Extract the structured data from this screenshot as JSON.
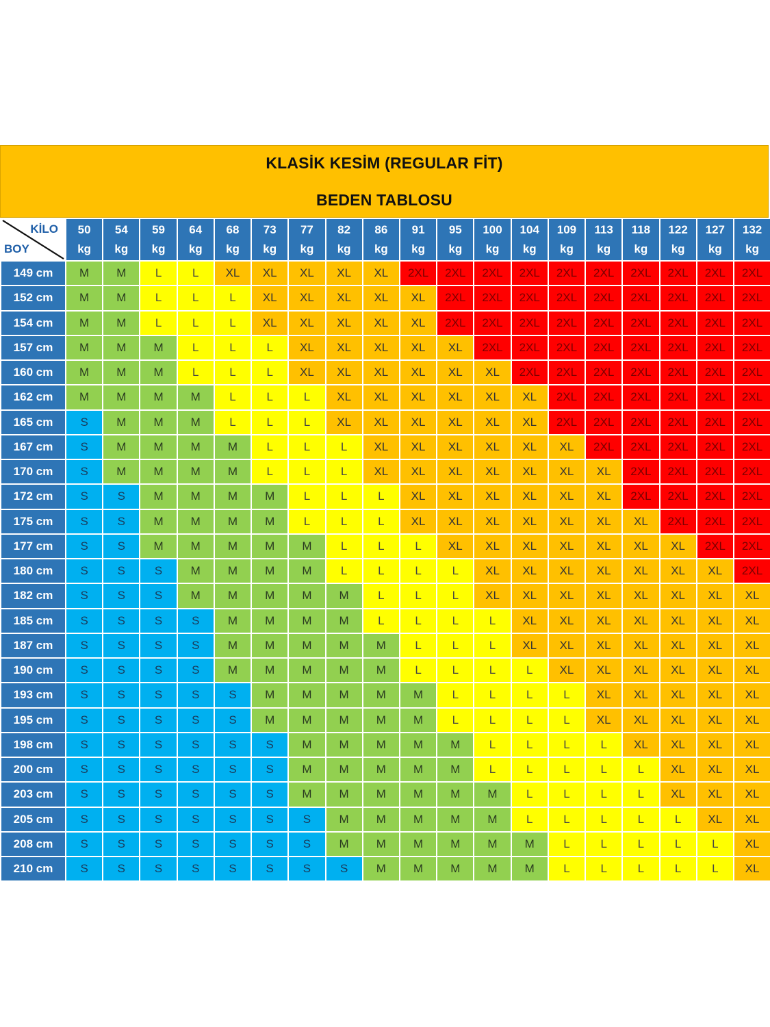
{
  "title": {
    "line1": "KLASİK KESİM (REGULAR FİT)",
    "line2": "BEDEN TABLOSU"
  },
  "corner": {
    "kilo_label": "KİLO",
    "boy_label": "BOY"
  },
  "kg_unit": "kg",
  "weights": [
    "50",
    "54",
    "59",
    "64",
    "68",
    "73",
    "77",
    "82",
    "86",
    "91",
    "95",
    "100",
    "104",
    "109",
    "113",
    "118",
    "122",
    "127",
    "132"
  ],
  "colors": {
    "S": "#00B0F0",
    "M": "#92D050",
    "L": "#FFFF00",
    "XL": "#FFC000",
    "2XL": "#FF0000",
    "header": "#2E75B6",
    "title_band": "#FFC000"
  },
  "rows": [
    {
      "height": "149 cm",
      "sizes": [
        "M",
        "M",
        "L",
        "L",
        "XL",
        "XL",
        "XL",
        "XL",
        "XL",
        "2XL",
        "2XL",
        "2XL",
        "2XL",
        "2XL",
        "2XL",
        "2XL",
        "2XL",
        "2XL",
        "2XL"
      ]
    },
    {
      "height": "152 cm",
      "sizes": [
        "M",
        "M",
        "L",
        "L",
        "L",
        "XL",
        "XL",
        "XL",
        "XL",
        "XL",
        "2XL",
        "2XL",
        "2XL",
        "2XL",
        "2XL",
        "2XL",
        "2XL",
        "2XL",
        "2XL"
      ]
    },
    {
      "height": "154 cm",
      "sizes": [
        "M",
        "M",
        "L",
        "L",
        "L",
        "XL",
        "XL",
        "XL",
        "XL",
        "XL",
        "2XL",
        "2XL",
        "2XL",
        "2XL",
        "2XL",
        "2XL",
        "2XL",
        "2XL",
        "2XL"
      ]
    },
    {
      "height": "157 cm",
      "sizes": [
        "M",
        "M",
        "M",
        "L",
        "L",
        "L",
        "XL",
        "XL",
        "XL",
        "XL",
        "XL",
        "2XL",
        "2XL",
        "2XL",
        "2XL",
        "2XL",
        "2XL",
        "2XL",
        "2XL"
      ]
    },
    {
      "height": "160 cm",
      "sizes": [
        "M",
        "M",
        "M",
        "L",
        "L",
        "L",
        "XL",
        "XL",
        "XL",
        "XL",
        "XL",
        "XL",
        "2XL",
        "2XL",
        "2XL",
        "2XL",
        "2XL",
        "2XL",
        "2XL"
      ]
    },
    {
      "height": "162 cm",
      "sizes": [
        "M",
        "M",
        "M",
        "M",
        "L",
        "L",
        "L",
        "XL",
        "XL",
        "XL",
        "XL",
        "XL",
        "XL",
        "2XL",
        "2XL",
        "2XL",
        "2XL",
        "2XL",
        "2XL"
      ]
    },
    {
      "height": "165 cm",
      "sizes": [
        "S",
        "M",
        "M",
        "M",
        "L",
        "L",
        "L",
        "XL",
        "XL",
        "XL",
        "XL",
        "XL",
        "XL",
        "2XL",
        "2XL",
        "2XL",
        "2XL",
        "2XL",
        "2XL"
      ]
    },
    {
      "height": "167 cm",
      "sizes": [
        "S",
        "M",
        "M",
        "M",
        "M",
        "L",
        "L",
        "L",
        "XL",
        "XL",
        "XL",
        "XL",
        "XL",
        "XL",
        "2XL",
        "2XL",
        "2XL",
        "2XL",
        "2XL"
      ]
    },
    {
      "height": "170 cm",
      "sizes": [
        "S",
        "M",
        "M",
        "M",
        "M",
        "L",
        "L",
        "L",
        "XL",
        "XL",
        "XL",
        "XL",
        "XL",
        "XL",
        "XL",
        "2XL",
        "2XL",
        "2XL",
        "2XL"
      ]
    },
    {
      "height": "172 cm",
      "sizes": [
        "S",
        "S",
        "M",
        "M",
        "M",
        "M",
        "L",
        "L",
        "L",
        "XL",
        "XL",
        "XL",
        "XL",
        "XL",
        "XL",
        "2XL",
        "2XL",
        "2XL",
        "2XL"
      ]
    },
    {
      "height": "175 cm",
      "sizes": [
        "S",
        "S",
        "M",
        "M",
        "M",
        "M",
        "L",
        "L",
        "L",
        "XL",
        "XL",
        "XL",
        "XL",
        "XL",
        "XL",
        "XL",
        "2XL",
        "2XL",
        "2XL"
      ]
    },
    {
      "height": "177 cm",
      "sizes": [
        "S",
        "S",
        "M",
        "M",
        "M",
        "M",
        "M",
        "L",
        "L",
        "L",
        "XL",
        "XL",
        "XL",
        "XL",
        "XL",
        "XL",
        "XL",
        "2XL",
        "2XL"
      ]
    },
    {
      "height": "180 cm",
      "sizes": [
        "S",
        "S",
        "S",
        "M",
        "M",
        "M",
        "M",
        "L",
        "L",
        "L",
        "L",
        "XL",
        "XL",
        "XL",
        "XL",
        "XL",
        "XL",
        "XL",
        "2XL"
      ]
    },
    {
      "height": "182 cm",
      "sizes": [
        "S",
        "S",
        "S",
        "M",
        "M",
        "M",
        "M",
        "M",
        "L",
        "L",
        "L",
        "XL",
        "XL",
        "XL",
        "XL",
        "XL",
        "XL",
        "XL",
        "XL"
      ]
    },
    {
      "height": "185 cm",
      "sizes": [
        "S",
        "S",
        "S",
        "S",
        "M",
        "M",
        "M",
        "M",
        "L",
        "L",
        "L",
        "L",
        "XL",
        "XL",
        "XL",
        "XL",
        "XL",
        "XL",
        "XL"
      ]
    },
    {
      "height": "187 cm",
      "sizes": [
        "S",
        "S",
        "S",
        "S",
        "M",
        "M",
        "M",
        "M",
        "M",
        "L",
        "L",
        "L",
        "XL",
        "XL",
        "XL",
        "XL",
        "XL",
        "XL",
        "XL"
      ]
    },
    {
      "height": "190 cm",
      "sizes": [
        "S",
        "S",
        "S",
        "S",
        "M",
        "M",
        "M",
        "M",
        "M",
        "L",
        "L",
        "L",
        "L",
        "XL",
        "XL",
        "XL",
        "XL",
        "XL",
        "XL"
      ]
    },
    {
      "height": "193 cm",
      "sizes": [
        "S",
        "S",
        "S",
        "S",
        "S",
        "M",
        "M",
        "M",
        "M",
        "M",
        "L",
        "L",
        "L",
        "L",
        "XL",
        "XL",
        "XL",
        "XL",
        "XL"
      ]
    },
    {
      "height": "195 cm",
      "sizes": [
        "S",
        "S",
        "S",
        "S",
        "S",
        "M",
        "M",
        "M",
        "M",
        "M",
        "L",
        "L",
        "L",
        "L",
        "XL",
        "XL",
        "XL",
        "XL",
        "XL"
      ]
    },
    {
      "height": "198 cm",
      "sizes": [
        "S",
        "S",
        "S",
        "S",
        "S",
        "S",
        "M",
        "M",
        "M",
        "M",
        "M",
        "L",
        "L",
        "L",
        "L",
        "XL",
        "XL",
        "XL",
        "XL"
      ]
    },
    {
      "height": "200 cm",
      "sizes": [
        "S",
        "S",
        "S",
        "S",
        "S",
        "S",
        "M",
        "M",
        "M",
        "M",
        "M",
        "L",
        "L",
        "L",
        "L",
        "L",
        "XL",
        "XL",
        "XL"
      ]
    },
    {
      "height": "203 cm",
      "sizes": [
        "S",
        "S",
        "S",
        "S",
        "S",
        "S",
        "M",
        "M",
        "M",
        "M",
        "M",
        "M",
        "L",
        "L",
        "L",
        "L",
        "XL",
        "XL",
        "XL"
      ]
    },
    {
      "height": "205 cm",
      "sizes": [
        "S",
        "S",
        "S",
        "S",
        "S",
        "S",
        "S",
        "M",
        "M",
        "M",
        "M",
        "M",
        "L",
        "L",
        "L",
        "L",
        "L",
        "XL",
        "XL"
      ]
    },
    {
      "height": "208 cm",
      "sizes": [
        "S",
        "S",
        "S",
        "S",
        "S",
        "S",
        "S",
        "M",
        "M",
        "M",
        "M",
        "M",
        "M",
        "L",
        "L",
        "L",
        "L",
        "L",
        "XL"
      ]
    },
    {
      "height": "210 cm",
      "sizes": [
        "S",
        "S",
        "S",
        "S",
        "S",
        "S",
        "S",
        "S",
        "M",
        "M",
        "M",
        "M",
        "M",
        "L",
        "L",
        "L",
        "L",
        "L",
        "XL"
      ]
    }
  ]
}
